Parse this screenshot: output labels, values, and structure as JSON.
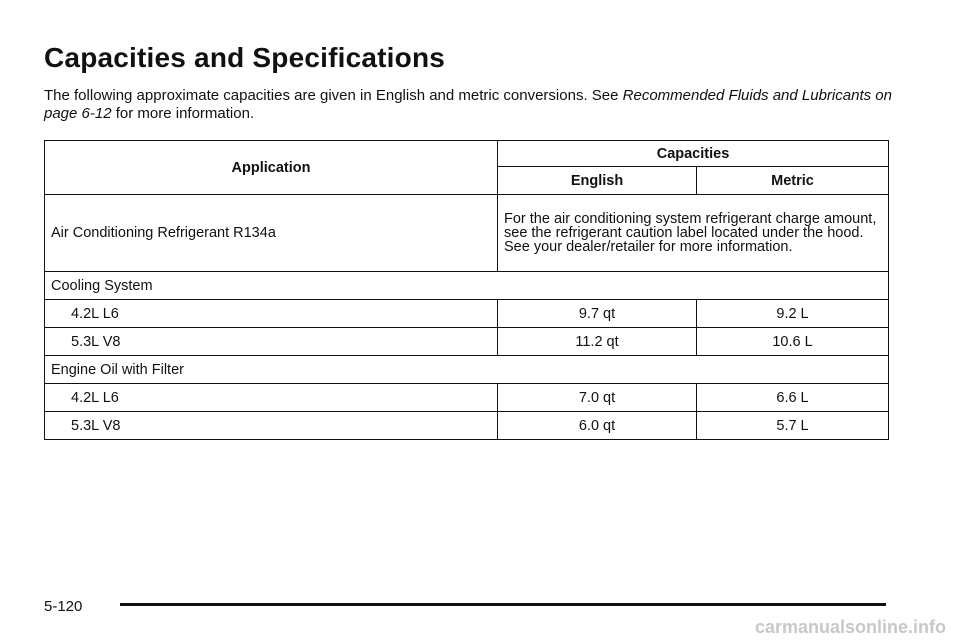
{
  "header": {
    "title": "Capacities and Specifications"
  },
  "intro": {
    "text": "The following approximate capacities are given in English and metric conversions. See",
    "link": "Recommended Fluids and Lubricants on page 6-12",
    "after": "for more information."
  },
  "table": {
    "headers": {
      "application": "Application",
      "capacities": "Capacities",
      "english": "English",
      "metric": "Metric"
    },
    "rows": [
      [
        "Air Conditioning Refrigerant R134a",
        "For the air conditioning system refrigerant charge amount, see the refrigerant caution label located under the hood. See your dealer/retailer for more information."
      ],
      [
        "Cooling System"
      ],
      [
        "4.2L L6",
        "9.7 qt",
        "9.2 L"
      ],
      [
        "5.3L V8",
        "11.2 qt",
        "10.6 L"
      ],
      [
        "Engine Oil with Filter"
      ],
      [
        "4.2L L6",
        "7.0 qt",
        "6.6 L"
      ],
      [
        "5.3L V8",
        "6.0 qt",
        "5.7 L"
      ]
    ]
  },
  "footer": {
    "page": "5-120",
    "watermark": "carmanualsonline.info"
  }
}
